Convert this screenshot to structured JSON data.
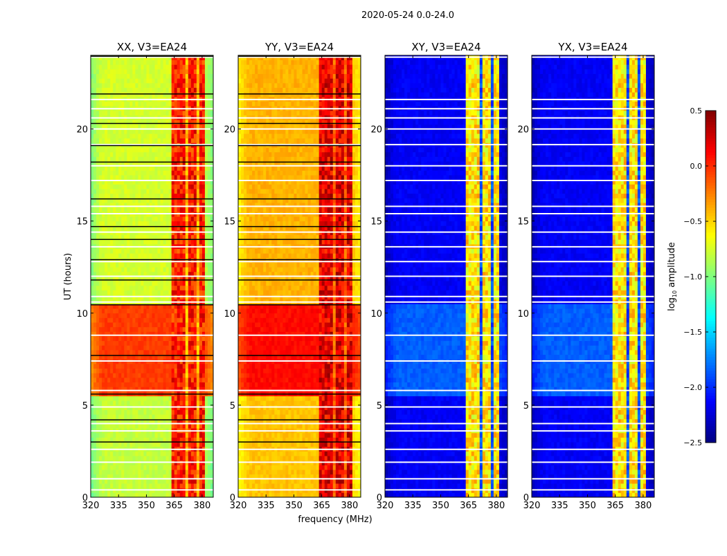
{
  "chart_data": {
    "type": "heatmap",
    "title": "2020-05-24 0.0-24.0",
    "xlabel": "frequency (MHz)",
    "ylabel": "UT (hours)",
    "xlim": [
      320,
      386
    ],
    "ylim": [
      0,
      24
    ],
    "xticks": [
      320,
      335,
      350,
      365,
      380
    ],
    "yticks": [
      0,
      5,
      10,
      15,
      20
    ],
    "colorbar": {
      "label_main": "log",
      "label_sub": "10",
      "label_rest": " amplitude",
      "colormap": "jet",
      "vmin": -2.5,
      "vmax": 0.5,
      "ticks": [
        "0.5",
        "0.0",
        "−0.5",
        "−1.0",
        "−1.5",
        "−2.0",
        "−2.5"
      ],
      "tick_values": [
        0.5,
        0.0,
        -0.5,
        -1.0,
        -1.5,
        -2.0,
        -2.5
      ]
    },
    "rfi_bands_mhz": [
      [
        363,
        366
      ],
      [
        367,
        371
      ],
      [
        373,
        377
      ],
      [
        378,
        381
      ]
    ],
    "flagged_hours_white": [
      0.4,
      1.0,
      1.9,
      2.6,
      3.6,
      4.0,
      4.9,
      5.8,
      7.4,
      8.8,
      10.6,
      10.9,
      12.0,
      12.8,
      13.6,
      14.4,
      15.4,
      15.8,
      17.2,
      18.0,
      19.15,
      20.0,
      20.6,
      21.1,
      21.6,
      23.9
    ],
    "flagged_hours_black": [
      3.0,
      4.2,
      5.6,
      7.7,
      10.45,
      11.8,
      12.9,
      14.0,
      14.7,
      16.2,
      18.2,
      19.1,
      20.3,
      21.9,
      23.95
    ],
    "panels": [
      {
        "title": "XX, V3=EA24",
        "segments": [
          {
            "from": 0,
            "to": 5.6,
            "level": -0.8
          },
          {
            "from": 5.6,
            "to": 10.4,
            "level": -0.05
          },
          {
            "from": 10.4,
            "to": 24,
            "level": -0.75
          }
        ],
        "edge_drop": 0.25,
        "rfi_level": 0.05,
        "rfi_gap_level": -0.4,
        "black_flags": true
      },
      {
        "title": "YY, V3=EA24",
        "segments": [
          {
            "from": 0,
            "to": 5.6,
            "level": -0.45
          },
          {
            "from": 5.6,
            "to": 10.4,
            "level": 0.1
          },
          {
            "from": 10.4,
            "to": 24,
            "level": -0.4
          }
        ],
        "edge_drop": 0.2,
        "rfi_level": 0.2,
        "rfi_gap_level": -0.15,
        "black_flags": true
      },
      {
        "title": "XY, V3=EA24",
        "segments": [
          {
            "from": 0,
            "to": 5.6,
            "level": -2.15
          },
          {
            "from": 5.6,
            "to": 10.4,
            "level": -1.85
          },
          {
            "from": 10.4,
            "to": 24,
            "level": -2.15
          }
        ],
        "edge_drop": 0.2,
        "rfi_level": -0.55,
        "rfi_gap_level": -1.9,
        "black_flags": false
      },
      {
        "title": "YX, V3=EA24",
        "segments": [
          {
            "from": 0,
            "to": 5.6,
            "level": -2.15
          },
          {
            "from": 5.6,
            "to": 10.4,
            "level": -1.85
          },
          {
            "from": 10.4,
            "to": 24,
            "level": -2.15
          }
        ],
        "edge_drop": 0.2,
        "rfi_level": -0.55,
        "rfi_gap_level": -1.9,
        "black_flags": false
      }
    ]
  }
}
